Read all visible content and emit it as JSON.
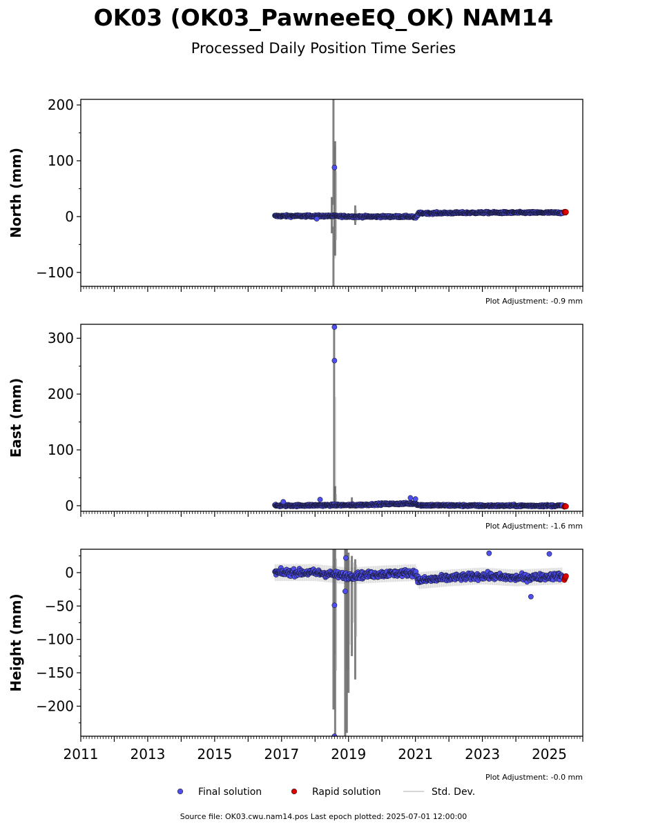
{
  "header": {
    "title": "OK03 (OK03_PawneeEQ_OK) NAM14",
    "subtitle": "Processed Daily Position Time Series"
  },
  "footer": {
    "source_text": "Source file: OK03.cwu.nam14.pos  Last epoch plotted: 2025-07-01 12:00:00"
  },
  "chart_data": [
    {
      "type": "scatter",
      "ylabel": "North (mm)",
      "xlim": [
        2011,
        2026
      ],
      "ylim": [
        -125,
        210
      ],
      "yticks": [
        -100,
        0,
        100,
        200
      ],
      "adjustment_label": "Plot Adjustment: -0.9 mm",
      "series": [
        {
          "name": "Final solution",
          "trend": [
            [
              2016.8,
              1
            ],
            [
              2018.5,
              1
            ],
            [
              2019.2,
              0
            ],
            [
              2020.9,
              0
            ],
            [
              2021.0,
              -3
            ],
            [
              2021.1,
              6
            ],
            [
              2023.0,
              7
            ],
            [
              2025.4,
              7
            ]
          ],
          "noise": 2.5
        },
        {
          "name": "Rapid solution",
          "trend": [
            [
              2025.45,
              8
            ],
            [
              2025.5,
              8
            ]
          ],
          "noise": 1.5
        }
      ],
      "outliers": [
        [
          2018.58,
          88
        ],
        [
          2018.05,
          -4
        ]
      ],
      "stddev_bands": [
        [
          2018.55,
          -125,
          210
        ],
        [
          2018.6,
          -70,
          135
        ],
        [
          2018.5,
          -30,
          35
        ],
        [
          2019.2,
          -15,
          20
        ]
      ],
      "xticks_labeled": false
    },
    {
      "type": "scatter",
      "ylabel": "East (mm)",
      "xlim": [
        2011,
        2026
      ],
      "ylim": [
        -10,
        325
      ],
      "yticks": [
        0,
        100,
        200,
        300
      ],
      "adjustment_label": "Plot Adjustment: -1.6 mm",
      "series": [
        {
          "name": "Final solution",
          "trend": [
            [
              2016.8,
              0
            ],
            [
              2018.5,
              1
            ],
            [
              2019.2,
              1
            ],
            [
              2020.0,
              3
            ],
            [
              2021.0,
              4
            ],
            [
              2021.1,
              1
            ],
            [
              2023.0,
              0
            ],
            [
              2025.4,
              0
            ]
          ],
          "noise": 2.5
        },
        {
          "name": "Rapid solution",
          "trend": [
            [
              2025.45,
              -1
            ],
            [
              2025.5,
              -1
            ]
          ],
          "noise": 1
        }
      ],
      "outliers": [
        [
          2018.58,
          320
        ],
        [
          2018.58,
          260
        ],
        [
          2018.15,
          11
        ],
        [
          2017.05,
          7
        ],
        [
          2020.85,
          14
        ],
        [
          2021.0,
          12
        ]
      ],
      "stddev_bands": [
        [
          2018.57,
          0,
          325
        ],
        [
          2018.6,
          -5,
          35
        ],
        [
          2019.1,
          -5,
          15
        ]
      ],
      "xticks_labeled": false
    },
    {
      "type": "scatter",
      "ylabel": "Height (mm)",
      "xlim": [
        2011,
        2026
      ],
      "ylim": [
        -245,
        35
      ],
      "yticks": [
        -200,
        -150,
        -100,
        -50,
        0
      ],
      "xticks": [
        2011,
        2013,
        2015,
        2017,
        2019,
        2021,
        2023,
        2025
      ],
      "adjustment_label": "Plot Adjustment: -0.0 mm",
      "series": [
        {
          "name": "Final solution",
          "trend": [
            [
              2016.8,
              0
            ],
            [
              2018.0,
              0
            ],
            [
              2019.0,
              -5
            ],
            [
              2020.0,
              -2
            ],
            [
              2021.0,
              0
            ],
            [
              2021.1,
              -12
            ],
            [
              2022.0,
              -8
            ],
            [
              2023.0,
              -5
            ],
            [
              2024.0,
              -8
            ],
            [
              2025.4,
              -5
            ]
          ],
          "noise": 7
        },
        {
          "name": "Rapid solution",
          "trend": [
            [
              2025.45,
              -8
            ],
            [
              2025.5,
              -8
            ]
          ],
          "noise": 5
        }
      ],
      "outliers": [
        [
          2018.58,
          -49
        ],
        [
          2018.58,
          -245
        ],
        [
          2018.9,
          -28
        ],
        [
          2018.92,
          22
        ],
        [
          2023.2,
          29
        ],
        [
          2024.45,
          -36
        ],
        [
          2025.0,
          28
        ]
      ],
      "stddev_bands": [
        [
          2018.55,
          -205,
          35
        ],
        [
          2018.6,
          -245,
          35
        ],
        [
          2018.9,
          -245,
          35
        ],
        [
          2018.95,
          -240,
          35
        ],
        [
          2019.0,
          -180,
          30
        ],
        [
          2019.1,
          -125,
          25
        ],
        [
          2019.2,
          -160,
          20
        ]
      ],
      "xticks_labeled": true
    }
  ],
  "legend": {
    "items": [
      {
        "label": "Final solution",
        "color": "#4f4ff0"
      },
      {
        "label": "Rapid solution",
        "color": "#e00000"
      },
      {
        "label": "Std. Dev.",
        "color": "#c8c8c8"
      }
    ]
  },
  "colors": {
    "final": "#4f4ff0",
    "rapid": "#e00000",
    "stddev_light": "#c8c8c8",
    "stddev_dark": "#555555",
    "edge": "#1a1a3a"
  }
}
